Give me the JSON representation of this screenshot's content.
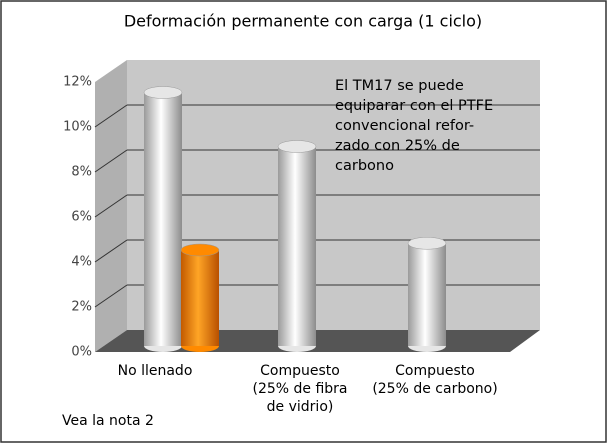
{
  "chart_data": {
    "type": "bar",
    "title": "Deformación permanente con carga (1 ciclo)",
    "categories": [
      "No llenado",
      "Compuesto\n(25% de fibra\nde vidrio)",
      "Compuesto\n(25% de carbono)"
    ],
    "series": [
      {
        "color": "#e6e6e6",
        "values": [
          11,
          8.6,
          4.3
        ]
      },
      {
        "color": "#ff8a00",
        "values": [
          4,
          null,
          null
        ]
      }
    ],
    "ylim": [
      0,
      12
    ],
    "yticks": [
      {
        "value": 0,
        "label": "0%"
      },
      {
        "value": 2,
        "label": "2%"
      },
      {
        "value": 4,
        "label": "4%"
      },
      {
        "value": 6,
        "label": "6%"
      },
      {
        "value": 8,
        "label": "8%"
      },
      {
        "value": 10,
        "label": "10%"
      },
      {
        "value": 12,
        "label": "12%"
      }
    ],
    "grid": true,
    "annotation": "El TM17 se puede\nequiparar con el PTFE\nconvencional refor-\nzado con 25% de\ncarbono",
    "footnote": "Vea la nota 2"
  }
}
